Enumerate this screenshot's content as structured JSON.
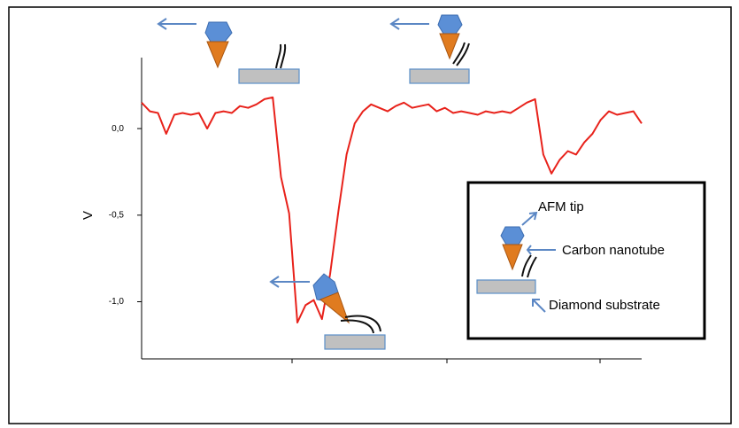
{
  "chart_data": {
    "type": "line",
    "y_label": "V",
    "annotations": [
      "AFM tip",
      "Carbon nanotube",
      "Diamond substrate"
    ],
    "color": "#e8221b",
    "values": [
      0.15,
      0.1,
      0.09,
      -0.03,
      0.08,
      0.09,
      0.08,
      0.09,
      0.0,
      0.09,
      0.1,
      0.09,
      0.13,
      0.12,
      0.14,
      0.17,
      0.18,
      -0.28,
      -0.49,
      -1.12,
      -1.02,
      -0.99,
      -1.1,
      -0.84,
      -0.48,
      -0.15,
      0.03,
      0.1,
      0.14,
      0.12,
      0.1,
      0.13,
      0.15,
      0.12,
      0.13,
      0.14,
      0.1,
      0.12,
      0.09,
      0.1,
      0.09,
      0.08,
      0.1,
      0.09,
      0.1,
      0.09,
      0.12,
      0.15,
      0.17,
      -0.15,
      -0.26,
      -0.18,
      -0.13,
      -0.15,
      -0.08,
      -0.03,
      0.05,
      0.1,
      0.08,
      0.09,
      0.1,
      0.03
    ],
    "ylim": [
      -1.33,
      0.41
    ],
    "yticks": [
      {
        "value": 0,
        "label": "0,0"
      },
      {
        "value": -0.5,
        "label": "-0,5"
      },
      {
        "value": -1,
        "label": "-1,0"
      }
    ]
  }
}
